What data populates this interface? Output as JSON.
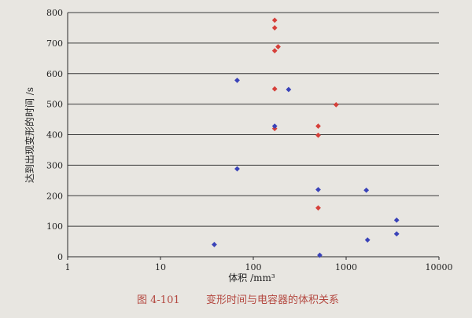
{
  "colors": {
    "background": "#e8e6e1",
    "gridline": "#3a3a3a",
    "axis": "#2a2a2a",
    "red_series": "#d6403a",
    "blue_series": "#3a43b8",
    "caption": "#b3473f"
  },
  "chart_data": {
    "type": "scatter",
    "title": "",
    "xlabel": "体积 /mm³",
    "ylabel": "达到出现变形的时间 /s",
    "xscale": "log",
    "xlim": [
      1,
      10000
    ],
    "ylim": [
      0,
      800
    ],
    "x_ticks": [
      "1",
      "10",
      "100",
      "1000",
      "10000"
    ],
    "y_ticks": [
      "0",
      "100",
      "200",
      "300",
      "400",
      "500",
      "600",
      "700",
      "800"
    ],
    "grid": "horizontal",
    "legend": "none",
    "series": [
      {
        "color": "#d6403a",
        "marker": "diamond",
        "points": [
          [
            170,
            775
          ],
          [
            170,
            750
          ],
          [
            170,
            675
          ],
          [
            185,
            688
          ],
          [
            170,
            550
          ],
          [
            170,
            420
          ],
          [
            500,
            428
          ],
          [
            500,
            398
          ],
          [
            780,
            498
          ],
          [
            500,
            160
          ]
        ]
      },
      {
        "color": "#3a43b8",
        "marker": "diamond",
        "points": [
          [
            67,
            578
          ],
          [
            67,
            288
          ],
          [
            38,
            40
          ],
          [
            170,
            428
          ],
          [
            240,
            548
          ],
          [
            500,
            220
          ],
          [
            1650,
            218
          ],
          [
            520,
            5
          ],
          [
            1700,
            55
          ],
          [
            3500,
            120
          ],
          [
            3500,
            75
          ]
        ]
      }
    ]
  },
  "caption": {
    "label": "图 4-101",
    "text": "变形时间与电容器的体积关系"
  }
}
